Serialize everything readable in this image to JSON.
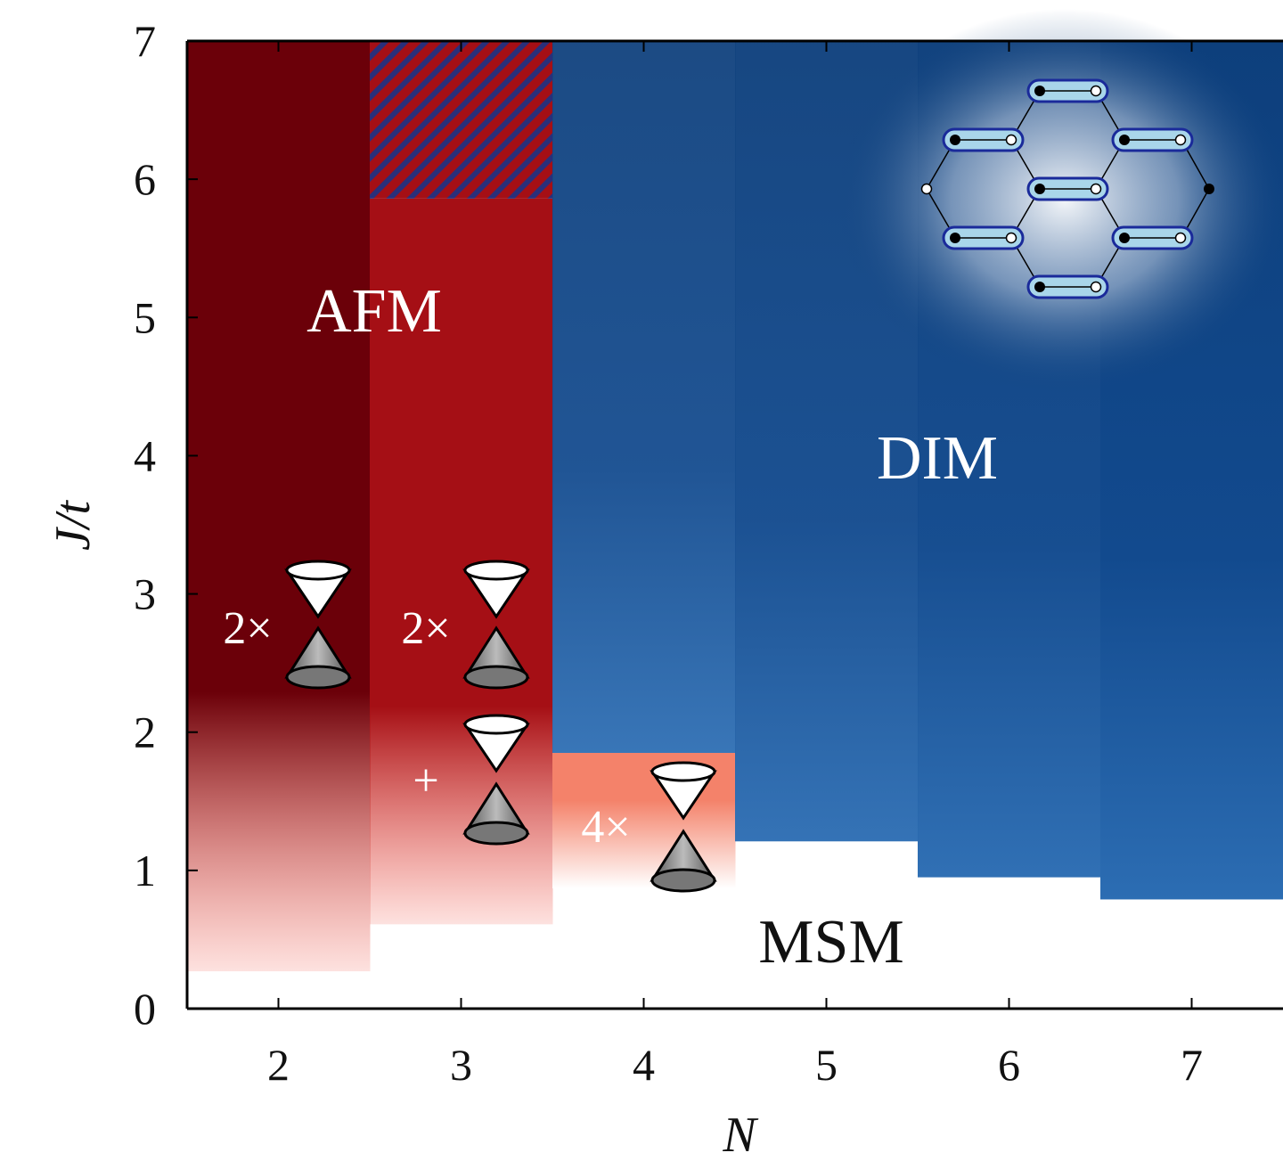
{
  "chart_data": {
    "type": "phase",
    "xlabel": "N",
    "ylabel": "J/t",
    "x": [
      2,
      3,
      4,
      5,
      6,
      7
    ],
    "xlim": [
      1.5,
      7.5
    ],
    "xticks": [
      2,
      3,
      4,
      5,
      6,
      7
    ],
    "ylim": [
      0,
      7
    ],
    "yticks": [
      0,
      1,
      2,
      3,
      4,
      5,
      6,
      7
    ],
    "series": [
      {
        "name": "AFM",
        "colors": [
          "#6b0009",
          "#a50f15",
          "#f4826a",
          null,
          null,
          null
        ],
        "lower": [
          0.27,
          0.61,
          0.87,
          null,
          null,
          null
        ],
        "upper": [
          7,
          5.86,
          1.85,
          null,
          null,
          null
        ]
      },
      {
        "name": "DIM",
        "color": "#0e427f",
        "lower": [
          null,
          5.86,
          1.85,
          1.21,
          0.95,
          0.79
        ],
        "hatched": [
          false,
          true,
          false,
          false,
          false,
          false
        ]
      }
    ],
    "region_label": "MSM",
    "annotations": [
      "2×",
      "2×",
      "+",
      "4×"
    ]
  }
}
